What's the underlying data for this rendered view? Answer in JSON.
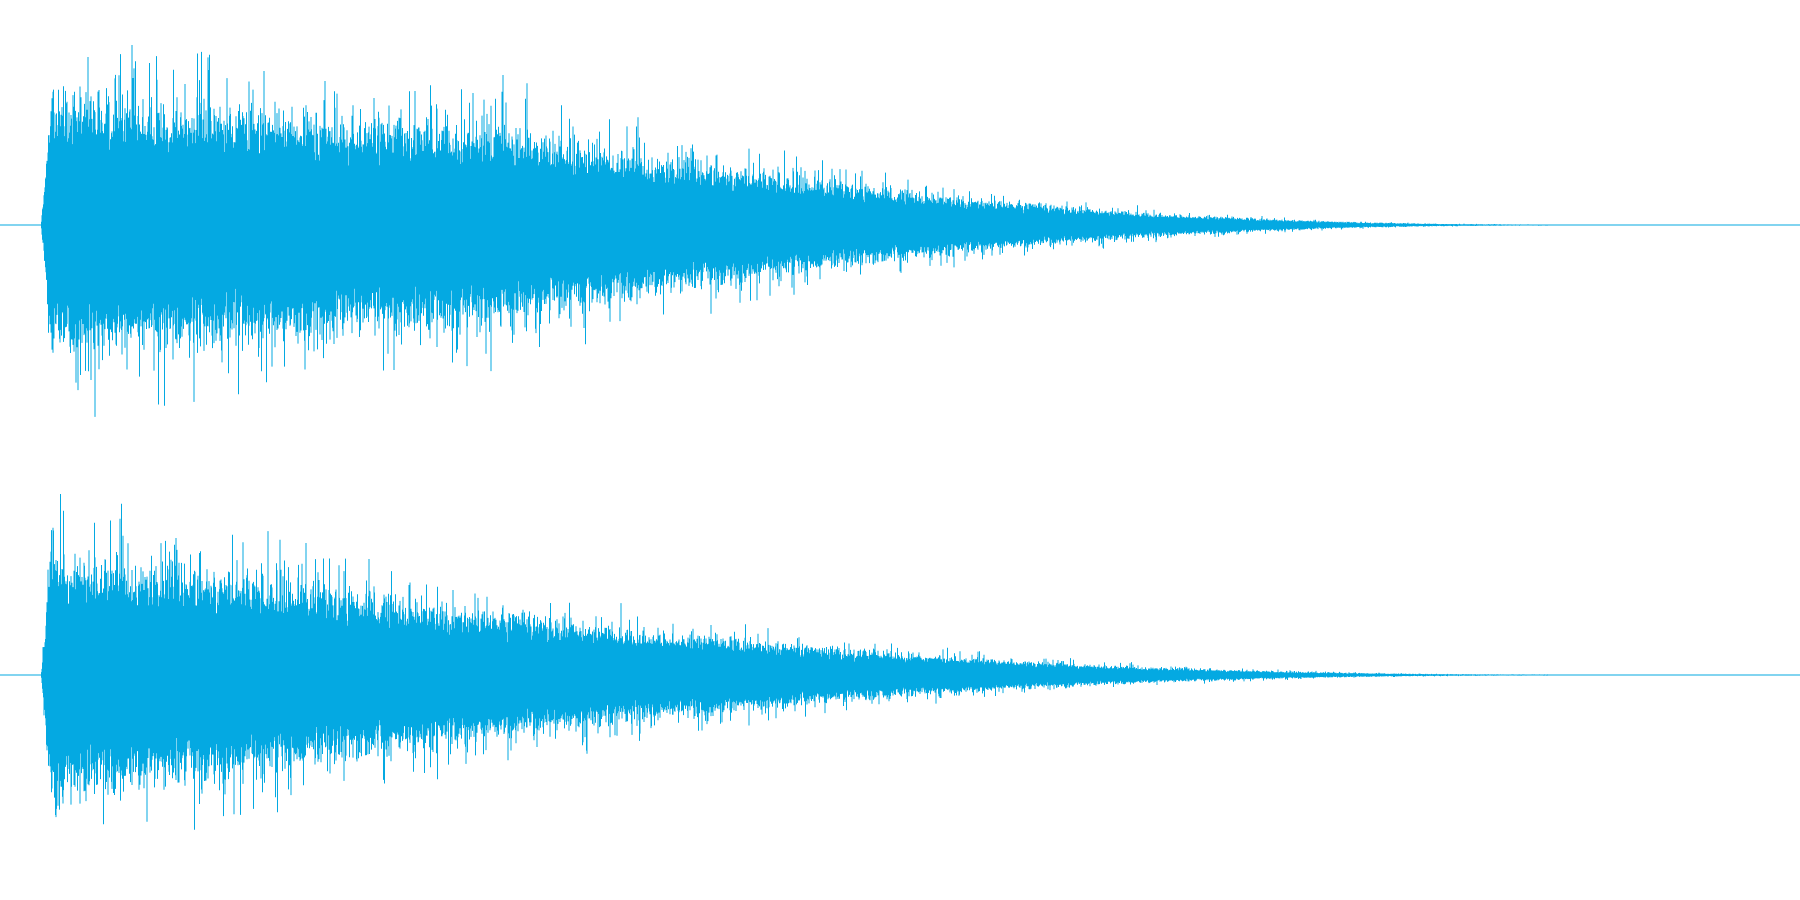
{
  "waveform": {
    "color": "#04a9e2",
    "channels": [
      {
        "name": "",
        "peak_amplitude": 0.95
      },
      {
        "name": "",
        "peak_amplitude": 0.92
      }
    ],
    "envelope": {
      "onset_fraction": 0.024,
      "sustain_end_fraction": 0.28,
      "decay_end_fraction": 0.86
    }
  }
}
